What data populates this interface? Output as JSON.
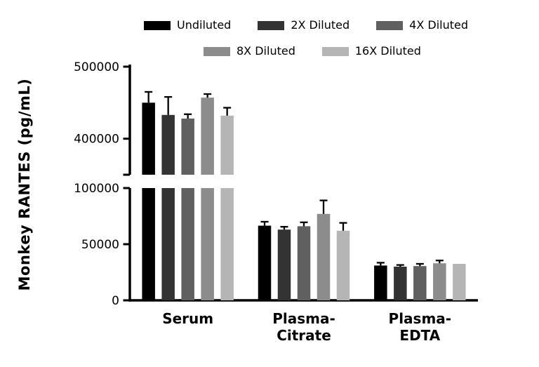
{
  "chart_data": {
    "type": "bar",
    "title": "",
    "xlabel": "",
    "ylabel": "Monkey RANTES (pg/mL)",
    "grid": false,
    "legend_position": "top",
    "categories": [
      "Serum",
      "Plasma-\nCitrate",
      "Plasma-\nEDTA"
    ],
    "series": [
      {
        "name": "Undiluted",
        "color": "#000000",
        "values": [
          450000,
          66500,
          31000
        ],
        "errors": [
          15000,
          3500,
          2500
        ]
      },
      {
        "name": "2X Diluted",
        "color": "#333333",
        "values": [
          433000,
          63000,
          30000
        ],
        "errors": [
          25000,
          2500,
          1500
        ]
      },
      {
        "name": "4X Diluted",
        "color": "#606060",
        "values": [
          428000,
          66000,
          30500
        ],
        "errors": [
          6000,
          3500,
          2000
        ]
      },
      {
        "name": "8X Diluted",
        "color": "#8c8c8c",
        "values": [
          457000,
          77000,
          33000
        ],
        "errors": [
          5000,
          12000,
          2500
        ]
      },
      {
        "name": "16X Diluted",
        "color": "#b5b5b5",
        "values": [
          432000,
          62000,
          32500
        ],
        "errors": [
          11000,
          7000,
          0
        ]
      }
    ],
    "axis_break": {
      "lower_range": [
        0,
        100000
      ],
      "upper_range": [
        350000,
        500000
      ],
      "lower_ticks": [
        {
          "value": 0,
          "label": "0"
        },
        {
          "value": 50000,
          "label": "50000"
        },
        {
          "value": 100000,
          "label": "100000"
        }
      ],
      "upper_ticks": [
        {
          "value": 400000,
          "label": "400000"
        },
        {
          "value": 500000,
          "label": "500000"
        }
      ]
    }
  }
}
